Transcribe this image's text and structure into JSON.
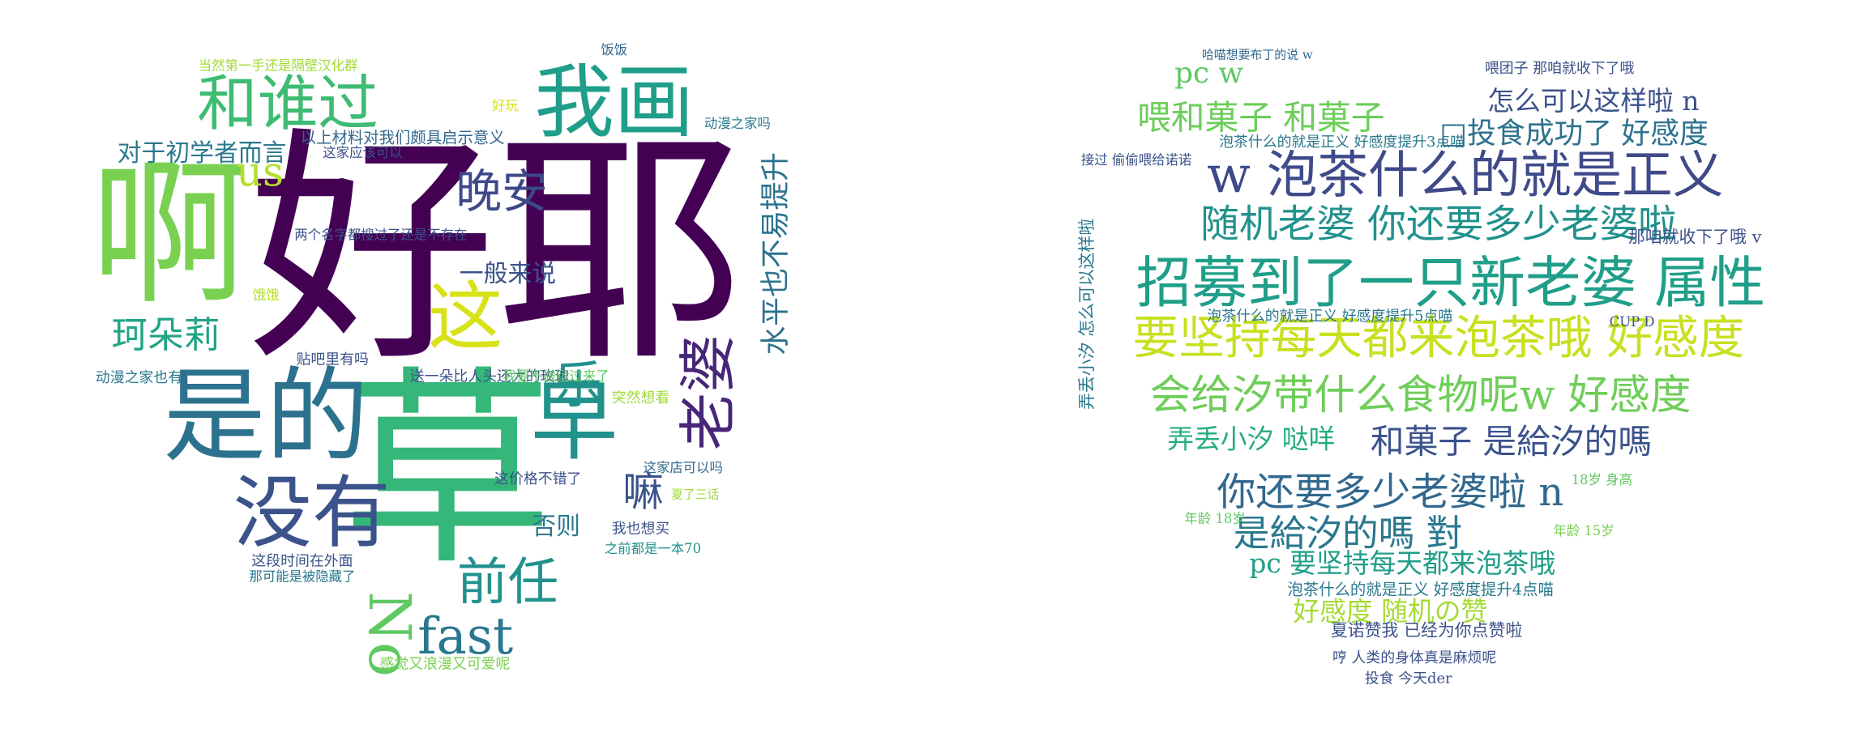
{
  "left_cloud": {
    "words": [
      "好耶",
      "草",
      "啊",
      "是的",
      "没有",
      "早",
      "我画",
      "和谁过",
      "这",
      "晚安",
      "us",
      "对于初学者而言",
      "珂朵莉",
      "一般来说",
      "乐",
      "老婆",
      "嘛",
      "否则",
      "前任",
      "No",
      "fast",
      "感觉又浪漫又可爱呢",
      "水平也不易提升",
      "以上材料对我们颇具启示意义",
      "这段时间在外面",
      "贴吧里有吗",
      "送一朵比人头还大的玫瑰",
      "这价格不错了",
      "我也想买",
      "动漫之家也有",
      "当然第一手还是隔壁汉化群",
      "饭饭",
      "动漫之家吗",
      "这家店可以吗",
      "这家应该可以",
      "突然想看",
      "夏了三话",
      "之前都是一本70",
      "那可能是被隐藏了",
      "好玩",
      "饿饿",
      "两个名字都搜过了还是不存在",
      "我要不搬运过来了"
    ]
  },
  "right_cloud": {
    "words": [
      "pc w",
      "喂和菓子 和菓子",
      "怎么可以这样啦 n",
      "□投食成功了 好感度",
      "w 泡茶什么的就是正义",
      "随机老婆 你还要多少老婆啦",
      "招募到了一只新老婆 属性",
      "要坚持每天都来泡茶哦 好感度",
      "会给汐带什么食物呢w 好感度",
      "弄丢小汐 哒咩",
      "和菓子 是給汐的嗎",
      "你还要多少老婆啦 n",
      "是給汐的嗎 對",
      "pc 要坚持每天都来泡茶哦",
      "泡茶什么的就是正义 好感度提升4点喵",
      "好感度 随机の赞",
      "夏诺赞我 已经为你点赞啦",
      "哼 人类的身体真是麻烦呢",
      "投食 今天der",
      "那咱就收下了哦 v",
      "喂团子 那咱就收下了哦",
      "哈喵想要布丁的说 w",
      "泡茶什么的就是正义 好感度提升3点喵",
      "接过 偷偷喂给诺诺",
      "泡茶什么的就是正义 好感度提升5点喵",
      "弄丢小汐 怎么可以这样啦",
      "18岁 身高",
      "年龄 18岁",
      "年龄 15岁",
      "CUP D"
    ]
  }
}
